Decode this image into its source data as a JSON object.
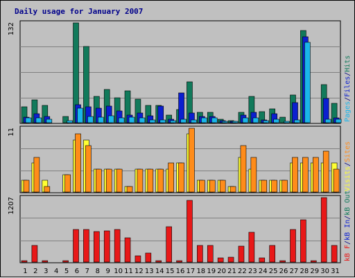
{
  "colors": {
    "background": "#c0c0c0",
    "plot_background": "#c0c0c0",
    "hits": "#117a5b",
    "files": "#0b1fd0",
    "pages": "#1ab6ea",
    "visits": "#ffff33",
    "sites": "#ff8c1a",
    "kb": "#e81818",
    "weekend_day": "#117a5b",
    "separator": "#000080",
    "title": "#00008b"
  },
  "chart_data": {
    "type": "bar",
    "title": "Daily usage for January 2007",
    "categories": [
      "1",
      "2",
      "3",
      "4",
      "5",
      "6",
      "7",
      "8",
      "9",
      "10",
      "11",
      "12",
      "13",
      "14",
      "15",
      "16",
      "17",
      "18",
      "19",
      "20",
      "21",
      "22",
      "23",
      "24",
      "25",
      "26",
      "27",
      "28",
      "29",
      "30",
      "31"
    ],
    "weekend_days": [
      "6",
      "7",
      "13",
      "14",
      "20",
      "21",
      "27",
      "28"
    ],
    "panels": [
      {
        "name": "hits-files-pages",
        "max_label": "132",
        "ylim": [
          0,
          132
        ],
        "legend": [
          {
            "label": "Pages",
            "color_key": "pages"
          },
          {
            "label": "/",
            "color_key": "separator"
          },
          {
            "label": "Files",
            "color_key": "files"
          },
          {
            "label": "/",
            "color_key": "separator"
          },
          {
            "label": "Hits",
            "color_key": "hits"
          }
        ],
        "series": [
          {
            "name": "Hits",
            "color_key": "hits",
            "values": [
              21,
              30,
              23,
              0,
              8,
              132,
              101,
              35,
              44,
              33,
              42,
              31,
              23,
              23,
              10,
              17,
              54,
              14,
              14,
              5,
              3,
              14,
              35,
              15,
              18,
              7,
              37,
              122,
              0,
              50,
              26
            ]
          },
          {
            "name": "Files",
            "color_key": "files",
            "values": [
              7,
              12,
              8,
              0,
              0,
              24,
              21,
              19,
              22,
              16,
              10,
              13,
              9,
              22,
              5,
              39,
              13,
              8,
              8,
              3,
              1,
              10,
              14,
              4,
              12,
              0,
              27,
              114,
              0,
              32,
              6
            ]
          },
          {
            "name": "Pages",
            "color_key": "pages",
            "values": [
              6,
              6,
              5,
              0,
              3,
              19,
              8,
              7,
              9,
              6,
              7,
              6,
              4,
              4,
              3,
              5,
              4,
              6,
              6,
              2,
              1,
              6,
              6,
              3,
              5,
              2,
              4,
              106,
              0,
              5,
              5
            ]
          }
        ]
      },
      {
        "name": "visits-sites",
        "max_label": "11",
        "ylim": [
          0,
          11
        ],
        "legend": [
          {
            "label": "Visits",
            "color_key": "visits"
          },
          {
            "label": "/",
            "color_key": "separator"
          },
          {
            "label": "Sites",
            "color_key": "sites"
          }
        ],
        "series": [
          {
            "name": "Visits",
            "color_key": "visits",
            "values": [
              2,
              5,
              2,
              0,
              3,
              9,
              9,
              4,
              4,
              4,
              1,
              4,
              4,
              4,
              4,
              5,
              10,
              2,
              2,
              2,
              1,
              6,
              4,
              2,
              2,
              2,
              5,
              5,
              5,
              5,
              5
            ]
          },
          {
            "name": "Sites",
            "color_key": "sites",
            "values": [
              2,
              6,
              1,
              0,
              3,
              10,
              8,
              4,
              4,
              4,
              1,
              4,
              4,
              4,
              5,
              5,
              11,
              2,
              2,
              2,
              1,
              8,
              6,
              2,
              2,
              2,
              6,
              6,
              6,
              7,
              4
            ]
          }
        ]
      },
      {
        "name": "kb",
        "max_label": "1207",
        "ylim": [
          0,
          1207
        ],
        "legend": [
          {
            "label": "kB F",
            "color_key": "kb"
          },
          {
            "label": "/",
            "color_key": "separator"
          },
          {
            "label": "kB In",
            "color_key": "files"
          },
          {
            "label": "/",
            "color_key": "separator"
          },
          {
            "label": "kB Out",
            "color_key": "hits"
          }
        ],
        "series": [
          {
            "name": "kB F",
            "color_key": "kb",
            "values": [
              18,
              317,
              12,
              0,
              18,
              610,
              610,
              567,
              588,
              615,
              450,
              121,
              168,
              18,
              663,
              18,
              1151,
              311,
              311,
              76,
              90,
              303,
              559,
              84,
              311,
              18,
              615,
              790,
              18,
              1207,
              311
            ]
          },
          {
            "name": "kB In",
            "color_key": "files",
            "values": [
              0,
              0,
              0,
              0,
              0,
              0,
              0,
              0,
              0,
              0,
              0,
              0,
              0,
              0,
              0,
              0,
              0,
              0,
              0,
              0,
              0,
              0,
              0,
              0,
              0,
              0,
              0,
              0,
              0,
              0,
              0
            ]
          },
          {
            "name": "kB Out",
            "color_key": "hits",
            "values": [
              0,
              0,
              0,
              0,
              0,
              0,
              0,
              0,
              0,
              0,
              0,
              0,
              0,
              0,
              0,
              0,
              0,
              0,
              0,
              0,
              0,
              0,
              0,
              0,
              0,
              0,
              0,
              0,
              0,
              0,
              0
            ]
          }
        ]
      }
    ]
  }
}
